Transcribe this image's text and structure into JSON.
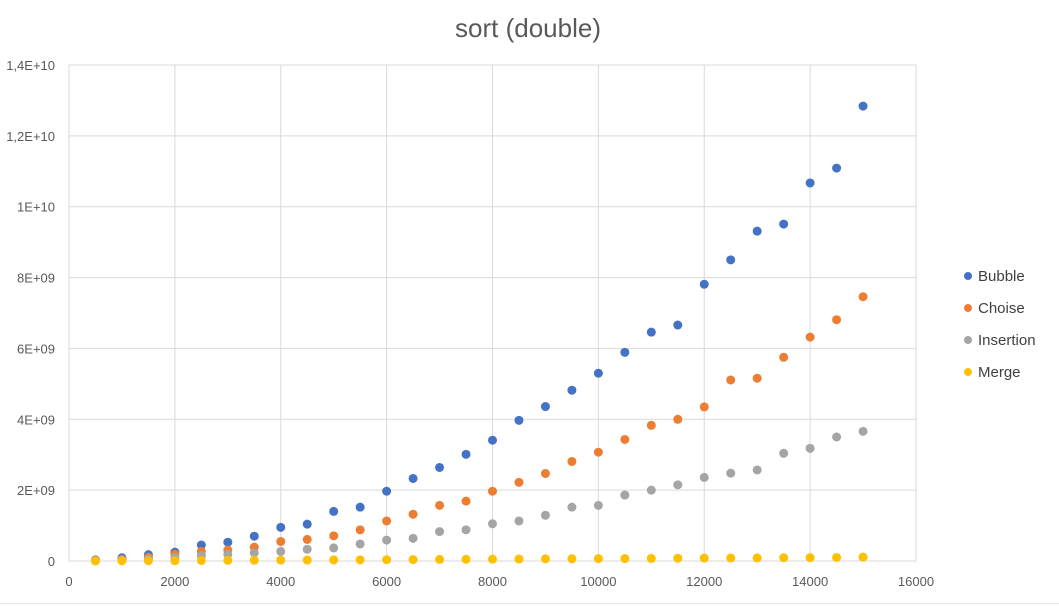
{
  "chart_data": {
    "type": "scatter",
    "title": "sort (double)",
    "xlabel": "",
    "ylabel": "",
    "xlim": [
      0,
      16000
    ],
    "ylim": [
      0,
      14000000000
    ],
    "x_ticks": [
      "0",
      "2000",
      "4000",
      "6000",
      "8000",
      "10000",
      "12000",
      "14000",
      "16000"
    ],
    "y_ticks": [
      "0",
      "2E+09",
      "4E+09",
      "6E+09",
      "8E+09",
      "1E+10",
      "1,2E+10",
      "1,4E+10"
    ],
    "grid": true,
    "legend_position": "right",
    "x": [
      500,
      1000,
      1500,
      2000,
      2500,
      3000,
      3500,
      4000,
      4500,
      5000,
      5500,
      6000,
      6500,
      7000,
      7500,
      8000,
      8500,
      9000,
      9500,
      10000,
      10500,
      11000,
      11500,
      12000,
      12500,
      13000,
      13500,
      14000,
      14500,
      15000
    ],
    "series": [
      {
        "name": "Bubble",
        "color": "#4472C4",
        "values": [
          30000000,
          90000000,
          180000000,
          250000000,
          450000000,
          530000000,
          700000000,
          950000000,
          1040000000,
          1400000000,
          1520000000,
          1970000000,
          2330000000,
          2640000000,
          3010000000,
          3410000000,
          3970000000,
          4360000000,
          4820000000,
          5300000000,
          5890000000,
          6460000000,
          6660000000,
          7810000000,
          8500000000,
          9310000000,
          9510000000,
          10670000000,
          11090000000,
          12840000000
        ]
      },
      {
        "name": "Choise",
        "color": "#ED7D31",
        "values": [
          20000000,
          50000000,
          110000000,
          190000000,
          270000000,
          310000000,
          390000000,
          550000000,
          610000000,
          710000000,
          880000000,
          1130000000,
          1320000000,
          1570000000,
          1690000000,
          1970000000,
          2220000000,
          2470000000,
          2810000000,
          3070000000,
          3430000000,
          3830000000,
          4000000000,
          4350000000,
          5110000000,
          5160000000,
          5750000000,
          6320000000,
          6810000000,
          7460000000
        ]
      },
      {
        "name": "Insertion",
        "color": "#A5A5A5",
        "values": [
          10000000,
          30000000,
          60000000,
          100000000,
          150000000,
          190000000,
          230000000,
          270000000,
          330000000,
          370000000,
          480000000,
          590000000,
          640000000,
          830000000,
          880000000,
          1050000000,
          1130000000,
          1290000000,
          1520000000,
          1570000000,
          1860000000,
          2000000000,
          2150000000,
          2360000000,
          2480000000,
          2570000000,
          3040000000,
          3180000000,
          3500000000,
          3660000000
        ]
      },
      {
        "name": "Merge",
        "color": "#FFC000",
        "values": [
          2000000,
          5000000,
          8000000,
          10000000,
          15000000,
          18000000,
          20000000,
          25000000,
          28000000,
          30000000,
          33000000,
          36000000,
          40000000,
          45000000,
          48000000,
          52000000,
          55000000,
          60000000,
          63000000,
          66000000,
          70000000,
          73000000,
          78000000,
          82000000,
          85000000,
          88000000,
          92000000,
          95000000,
          100000000,
          110000000
        ]
      }
    ]
  }
}
